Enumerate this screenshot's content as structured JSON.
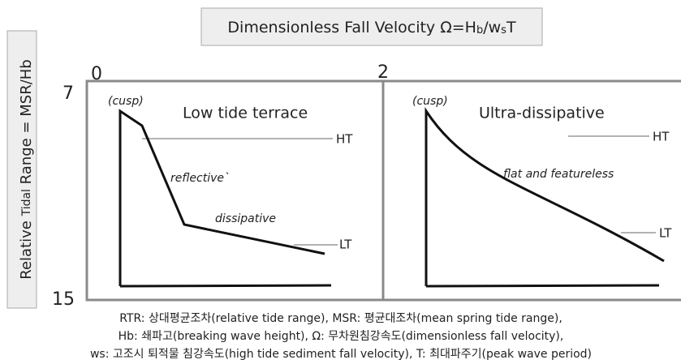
{
  "title": {
    "parts": [
      "Dimensionless Fall Velocity Ω=H",
      "b",
      "/w",
      "s",
      "T"
    ]
  },
  "y_label": {
    "parts": [
      "Relative ",
      "Tidal",
      " Range = MSR/Hb"
    ]
  },
  "axis_labels": {
    "x_left": "0",
    "x_mid": "2",
    "y_top": "7",
    "y_bottom": "15"
  },
  "panels": [
    {
      "title": "Low tide terrace",
      "cusp": "(cusp)",
      "ht": "HT",
      "lt": "LT",
      "notes": [
        "reflective`",
        "dissipative"
      ]
    },
    {
      "title": "Ultra-dissipative",
      "cusp": "(cusp)",
      "ht": "HT",
      "lt": "LT",
      "notes": [
        "flat and featureless"
      ]
    }
  ],
  "caption": [
    "RTR: 상대평균조차(relative tide range), MSR: 평균대조차(mean spring tide range),",
    "Hb: 쇄파고(breaking wave height), Ω: 무차원침강속도(dimensionless fall velocity),",
    "ws: 고조시 퇴적물 침강속도(high tide sediment fall velocity), T: 최대파주기(peak wave period)"
  ]
}
